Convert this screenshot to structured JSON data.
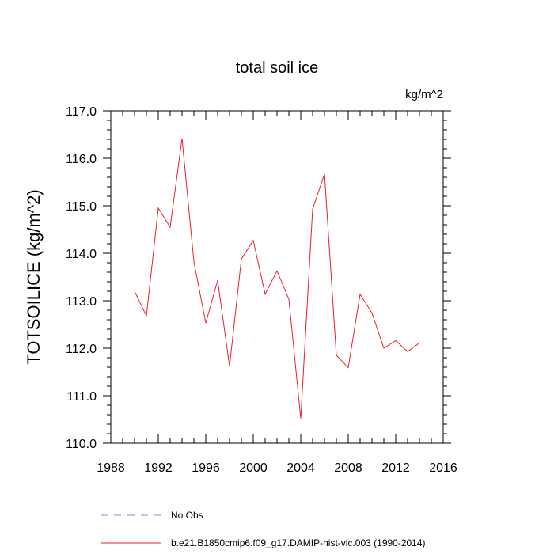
{
  "chart_data": {
    "type": "line",
    "title": "total soil ice",
    "units_label": "kg/m^2",
    "ylabel": "TOTSOILICE  (kg/m^2)",
    "xlabel": "",
    "xlim": [
      1988,
      2016
    ],
    "ylim": [
      110.0,
      117.0
    ],
    "x_ticks": [
      1988,
      1992,
      1996,
      2000,
      2004,
      2008,
      2012,
      2016
    ],
    "x_tick_labels": [
      "1988",
      "1992",
      "1996",
      "2000",
      "2004",
      "2008",
      "2012",
      "2016"
    ],
    "y_ticks": [
      110.0,
      111.0,
      112.0,
      113.0,
      114.0,
      115.0,
      116.0,
      117.0
    ],
    "y_tick_labels": [
      "110.0",
      "111.0",
      "112.0",
      "113.0",
      "114.0",
      "115.0",
      "116.0",
      "117.0"
    ],
    "grid": false,
    "legend_position": "bottom",
    "series": [
      {
        "name": "b.e21.B1850cmip6.f09_g17.DAMIP-hist-vlc.003 (1990-2014)",
        "color": "#e8202a",
        "style": "solid",
        "x": [
          1990,
          1991,
          1992,
          1993,
          1994,
          1995,
          1996,
          1997,
          1998,
          1999,
          2000,
          2001,
          2002,
          2003,
          2004,
          2005,
          2006,
          2007,
          2008,
          2009,
          2010,
          2011,
          2012,
          2013,
          2014
        ],
        "values": [
          113.2,
          112.68,
          114.95,
          114.55,
          116.42,
          113.82,
          112.53,
          113.43,
          111.62,
          113.88,
          114.27,
          113.14,
          113.63,
          113.03,
          110.52,
          114.93,
          115.67,
          111.85,
          111.59,
          113.14,
          112.74,
          112.0,
          112.16,
          111.93,
          112.11
        ]
      }
    ],
    "legend": [
      {
        "label": "No Obs",
        "color": "#8888ee",
        "style": "dashed"
      },
      {
        "label": "b.e21.B1850cmip6.f09_g17.DAMIP-hist-vlc.003 (1990-2014)",
        "color": "#e8202a",
        "style": "solid"
      }
    ]
  }
}
